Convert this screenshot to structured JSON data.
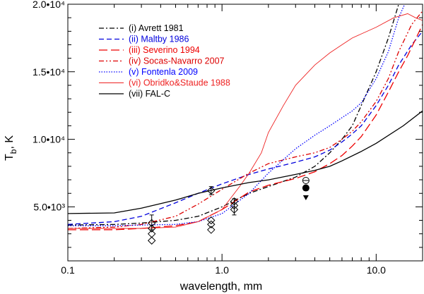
{
  "chart_data": {
    "type": "line",
    "title": "",
    "xlabel": "wavelength, mm",
    "ylabel_main": "T",
    "ylabel_sub": "b",
    "ylabel_tail": ", K",
    "xscale": "log",
    "xlim": [
      0.1,
      20
    ],
    "ylim": [
      1000,
      20000
    ],
    "x_ticks": [
      {
        "value": 0.1,
        "label": "0.1"
      },
      {
        "value": 1.0,
        "label": "1.0"
      },
      {
        "value": 10.0,
        "label": "10.0"
      }
    ],
    "y_ticks": [
      {
        "value": 5000,
        "label": "5.0•10³"
      },
      {
        "value": 10000,
        "label": "1.0•10⁴"
      },
      {
        "value": 15000,
        "label": "1.5•10⁴"
      },
      {
        "value": 20000,
        "label": "2.0•10⁴"
      }
    ],
    "legend_position": "top-left",
    "series": [
      {
        "name": "(i) Avrett 1981",
        "color": "#000000",
        "dash": "7,3,2,3",
        "x": [
          0.1,
          0.2,
          0.3,
          0.5,
          0.7,
          1.0,
          1.5,
          2.0,
          3.0,
          4.0,
          5.0,
          6.0,
          7.0,
          8.0,
          10.0,
          12.0,
          14.0,
          16.0
        ],
        "y": [
          3650,
          3700,
          3800,
          4000,
          4300,
          5000,
          6000,
          6500,
          7200,
          8000,
          9000,
          10000,
          11000,
          12500,
          15000,
          17500,
          20000,
          20500
        ]
      },
      {
        "name": "(ii) Maltby 1986",
        "color": "#0000dd",
        "dash": "7,4",
        "x": [
          0.1,
          0.2,
          0.3,
          0.5,
          0.7,
          1.0,
          1.5,
          2.0,
          3.0,
          4.0,
          5.0,
          6.0,
          7.0,
          8.0,
          10.0,
          12.0,
          14.0,
          17.0,
          20.0
        ],
        "y": [
          3700,
          3900,
          4300,
          5300,
          6000,
          6700,
          7400,
          7800,
          8300,
          8700,
          9200,
          9800,
          10400,
          11000,
          12500,
          14000,
          15500,
          17000,
          18000
        ]
      },
      {
        "name": "(iii) Severino 1994",
        "color": "#ee0000",
        "dash": "12,5",
        "x": [
          0.1,
          0.2,
          0.3,
          0.5,
          0.7,
          1.0,
          1.5,
          2.0,
          3.0,
          4.0,
          5.0,
          6.0,
          7.0,
          8.0,
          10.0,
          12.0,
          14.0,
          16.0,
          18.0,
          20.0
        ],
        "y": [
          3300,
          3300,
          3400,
          3600,
          3900,
          4800,
          6100,
          6600,
          7100,
          7600,
          8200,
          8800,
          9500,
          10200,
          11800,
          13500,
          15000,
          16200,
          17400,
          18500
        ]
      },
      {
        "name": "(iv) Socas-Navarro 2007",
        "color": "#dd0000",
        "dash": "7,3,2,3,2,3",
        "x": [
          0.1,
          0.2,
          0.3,
          0.5,
          0.7,
          1.0,
          1.5,
          2.0,
          3.0,
          4.0,
          5.0,
          6.0,
          7.0,
          8.0,
          10.0,
          12.0,
          14.0,
          17.0,
          20.0
        ],
        "y": [
          3400,
          3500,
          3700,
          4300,
          5200,
          6300,
          7500,
          8200,
          8700,
          9000,
          9400,
          10000,
          10600,
          11300,
          12800,
          14500,
          16500,
          18500,
          19500
        ]
      },
      {
        "name": "(v) Fontenla 2009",
        "color": "#0000ff",
        "dash": "1.5,2",
        "x": [
          0.1,
          0.2,
          0.3,
          0.5,
          0.7,
          1.0,
          1.5,
          2.0,
          3.0,
          4.0,
          5.0,
          6.0,
          7.0,
          8.0,
          10.0,
          12.0,
          14.0,
          16.0
        ],
        "y": [
          3600,
          3600,
          3650,
          3700,
          3900,
          4500,
          6000,
          7500,
          9300,
          10300,
          11000,
          11600,
          12100,
          12700,
          14500,
          16500,
          19000,
          20500
        ]
      },
      {
        "name": "(vi) Obridko&Staude 1988",
        "color": "#ee2222",
        "dash": "",
        "width": 0.9,
        "x": [
          0.1,
          0.2,
          0.3,
          0.5,
          0.7,
          1.0,
          1.3,
          1.5,
          1.8,
          2.0,
          2.5,
          3.0,
          4.0,
          5.0,
          6.0,
          7.0,
          8.0,
          10.0,
          13.0,
          16.0,
          18.0,
          20.0
        ],
        "y": [
          3400,
          3400,
          3400,
          3500,
          3900,
          4800,
          6500,
          7500,
          9000,
          10500,
          12500,
          14000,
          15500,
          16400,
          17000,
          17500,
          17800,
          18300,
          19000,
          19300,
          19000,
          18800
        ]
      },
      {
        "name": "(vii) FAL-C",
        "color": "#000000",
        "dash": "",
        "x": [
          0.1,
          0.2,
          0.3,
          0.5,
          0.7,
          1.0,
          1.5,
          2.0,
          3.0,
          4.0,
          5.0,
          6.0,
          8.0,
          10.0,
          15.0,
          20.0
        ],
        "y": [
          4500,
          4550,
          4900,
          5500,
          6000,
          6400,
          6800,
          7000,
          7400,
          7700,
          8000,
          8400,
          9100,
          9700,
          11000,
          12100
        ]
      }
    ],
    "observations": [
      {
        "type": "diamond",
        "points": [
          {
            "x": 0.35,
            "y": 3800
          },
          {
            "x": 0.35,
            "y": 3400
          },
          {
            "x": 0.35,
            "y": 3000
          },
          {
            "x": 0.35,
            "y": 2500
          },
          {
            "x": 0.85,
            "y": 6200
          },
          {
            "x": 0.85,
            "y": 4000
          },
          {
            "x": 0.85,
            "y": 3700
          },
          {
            "x": 0.85,
            "y": 3300
          },
          {
            "x": 1.2,
            "y": 5400
          },
          {
            "x": 1.2,
            "y": 5100
          },
          {
            "x": 1.2,
            "y": 4800
          }
        ]
      },
      {
        "type": "errorbar",
        "points": [
          {
            "x": 0.35,
            "ylow": 3300,
            "yhigh": 4400
          },
          {
            "x": 0.85,
            "ylow": 5900,
            "yhigh": 6500
          },
          {
            "x": 1.2,
            "ylow": 4400,
            "yhigh": 5600
          }
        ]
      },
      {
        "type": "filled-circle",
        "points": [
          {
            "x": 3.5,
            "y": 6400
          }
        ]
      },
      {
        "type": "open-circle",
        "points": [
          {
            "x": 3.5,
            "y": 6950
          }
        ]
      },
      {
        "type": "triangle-down",
        "points": [
          {
            "x": 3.5,
            "y": 5700
          }
        ]
      }
    ]
  }
}
